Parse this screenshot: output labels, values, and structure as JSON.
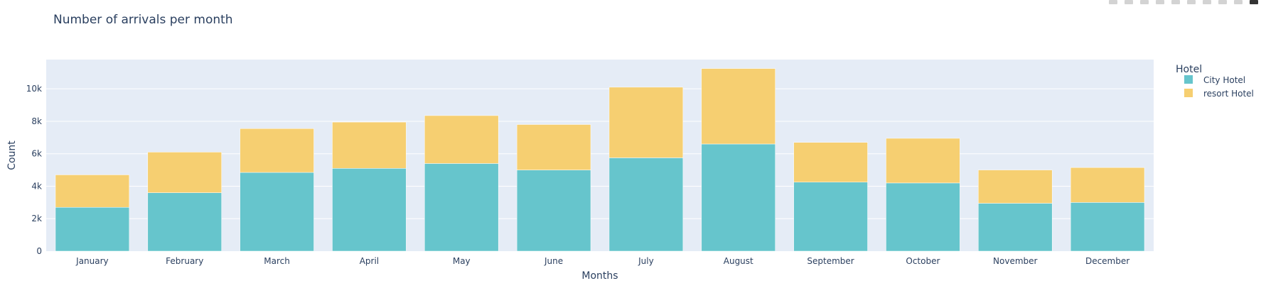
{
  "chart_data": {
    "type": "bar",
    "stacked": true,
    "title": "Number of arrivals per month",
    "xlabel": "Months",
    "ylabel": "Count",
    "categories": [
      "January",
      "February",
      "March",
      "April",
      "May",
      "June",
      "July",
      "August",
      "September",
      "October",
      "November",
      "December"
    ],
    "series": [
      {
        "name": "City Hotel",
        "color": "#66c5cc",
        "values": [
          2700,
          3600,
          4850,
          5100,
          5400,
          5000,
          5750,
          6600,
          4250,
          4200,
          2950,
          3000
        ]
      },
      {
        "name": "resort Hotel",
        "color": "#f6cf71",
        "values": [
          2000,
          2500,
          2700,
          2850,
          2950,
          2800,
          4350,
          4650,
          2450,
          2750,
          2050,
          2150
        ]
      }
    ],
    "ylim": [
      0,
      11800
    ],
    "yticks": [
      0,
      2000,
      4000,
      6000,
      8000,
      10000
    ],
    "ytick_labels": [
      "0",
      "2k",
      "4k",
      "6k",
      "8k",
      "10k"
    ],
    "grid": true,
    "legend_title": "Hotel",
    "legend_position": "right"
  },
  "modebar": {
    "icons": [
      "camera-icon",
      "zoom-icon",
      "pan-icon",
      "box-select-icon",
      "lasso-icon",
      "zoom-in-icon",
      "zoom-out-icon",
      "autoscale-icon",
      "reset-axes-icon",
      "plotly-logo-icon"
    ]
  }
}
